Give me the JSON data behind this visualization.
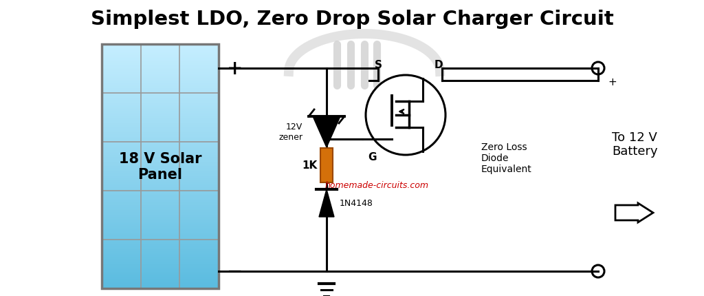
{
  "title": "Simplest LDO, Zero Drop Solar Charger Circuit",
  "title_fontsize": 21,
  "bg_color": "#ffffff",
  "panel_label": "18 V Solar\nPanel",
  "panel_label_fontsize": 14,
  "panel_plus": "+",
  "panel_minus": "−",
  "zener_label": "12V\nzener",
  "resistor_label": "1K",
  "diode_label": "1N4148",
  "watermark": "homemade-circuits.com",
  "watermark_color": "#cc0000",
  "zero_loss_label": "Zero Loss\nDiode\nEquivalent",
  "battery_label": "To 12 V\nBattery",
  "plus_terminal": "+",
  "mosfet_s": "S",
  "mosfet_d": "D",
  "mosfet_g": "G",
  "line_color": "#000000",
  "panel_grid_color": "#999999",
  "resistor_color": "#d4700a",
  "panel_bg_top": "#a8e4f8",
  "panel_bg_bot": "#d0f0ff",
  "lw": 2.2
}
